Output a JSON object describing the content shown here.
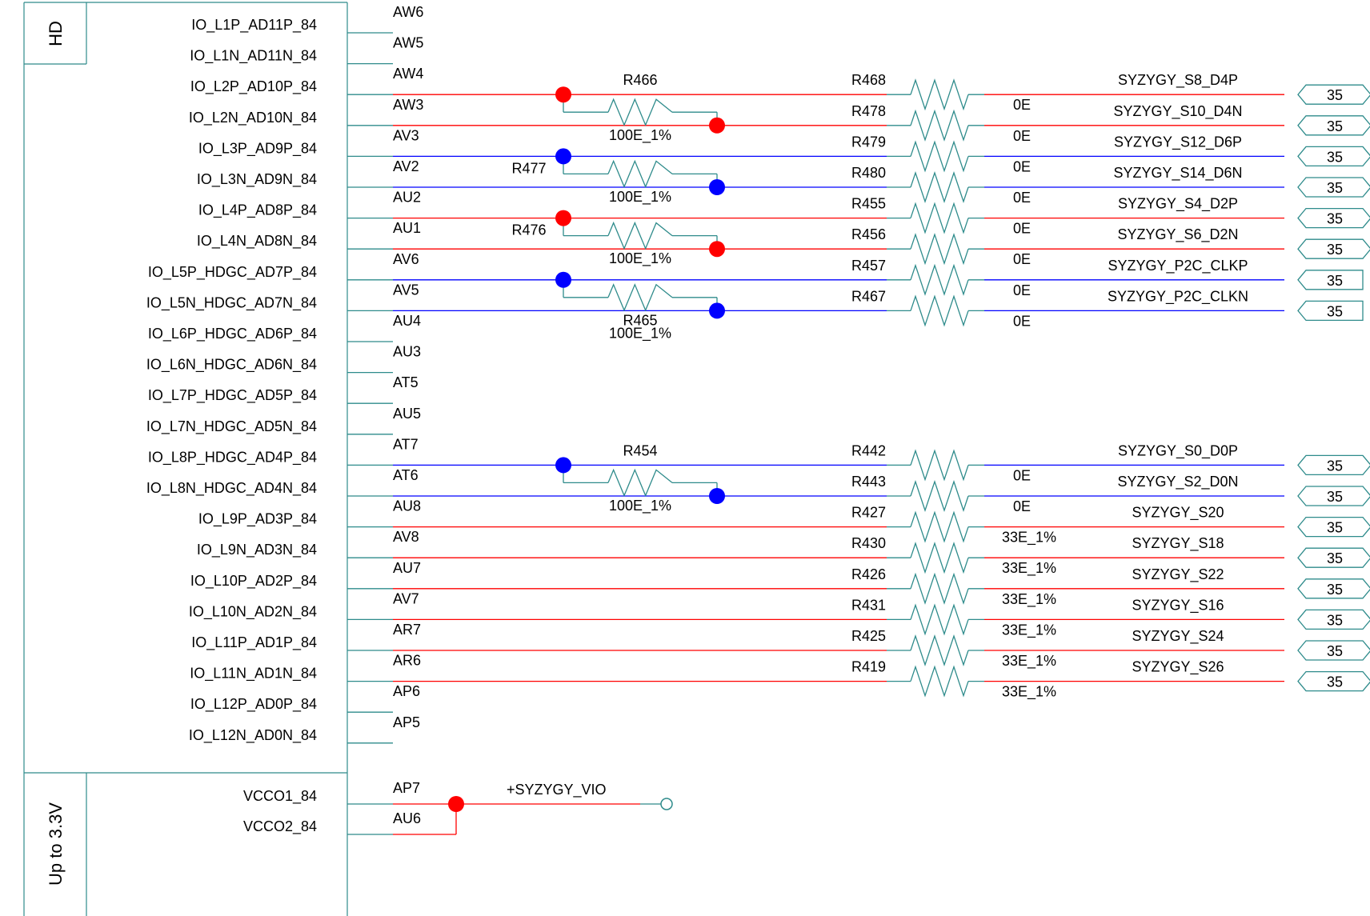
{
  "symbol": {
    "bank_label": "HD",
    "power_label": "Up to 3.3V",
    "pins": [
      {
        "name": "IO_L1P_AD11P_84",
        "pin": "AW6"
      },
      {
        "name": "IO_L1N_AD11N_84",
        "pin": "AW5"
      },
      {
        "name": "IO_L2P_AD10P_84",
        "pin": "AW4"
      },
      {
        "name": "IO_L2N_AD10N_84",
        "pin": "AW3"
      },
      {
        "name": "IO_L3P_AD9P_84",
        "pin": "AV3"
      },
      {
        "name": "IO_L3N_AD9N_84",
        "pin": "AV2"
      },
      {
        "name": "IO_L4P_AD8P_84",
        "pin": "AU2"
      },
      {
        "name": "IO_L4N_AD8N_84",
        "pin": "AU1"
      },
      {
        "name": "IO_L5P_HDGC_AD7P_84",
        "pin": "AV6"
      },
      {
        "name": "IO_L5N_HDGC_AD7N_84",
        "pin": "AV5"
      },
      {
        "name": "IO_L6P_HDGC_AD6P_84",
        "pin": "AU4"
      },
      {
        "name": "IO_L6N_HDGC_AD6N_84",
        "pin": "AU3"
      },
      {
        "name": "IO_L7P_HDGC_AD5P_84",
        "pin": "AT5"
      },
      {
        "name": "IO_L7N_HDGC_AD5N_84",
        "pin": "AU5"
      },
      {
        "name": "IO_L8P_HDGC_AD4P_84",
        "pin": "AT7"
      },
      {
        "name": "IO_L8N_HDGC_AD4N_84",
        "pin": "AT6"
      },
      {
        "name": "IO_L9P_AD3P_84",
        "pin": "AU8"
      },
      {
        "name": "IO_L9N_AD3N_84",
        "pin": "AV8"
      },
      {
        "name": "IO_L10P_AD2P_84",
        "pin": "AU7"
      },
      {
        "name": "IO_L10N_AD2N_84",
        "pin": "AV7"
      },
      {
        "name": "IO_L11P_AD1P_84",
        "pin": "AR7"
      },
      {
        "name": "IO_L11N_AD1N_84",
        "pin": "AR6"
      },
      {
        "name": "IO_L12P_AD0P_84",
        "pin": "AP6"
      },
      {
        "name": "IO_L12N_AD0N_84",
        "pin": "AP5"
      }
    ],
    "power_pins": [
      {
        "name": "VCCO1_84",
        "pin": "AP7"
      },
      {
        "name": "VCCO2_84",
        "pin": "AU6"
      }
    ]
  },
  "diff_terminations": [
    {
      "ref": "R466",
      "value": "100E_1%"
    },
    {
      "ref": "R477",
      "value": "100E_1%"
    },
    {
      "ref": "R476",
      "value": "100E_1%"
    },
    {
      "ref": "R465",
      "value": "100E_1%"
    },
    {
      "ref": "R454",
      "value": "100E_1%"
    }
  ],
  "series_resistors": [
    {
      "ref": "R468",
      "value": "0E",
      "net": "SYZYGY_S8_D4P",
      "page": "35"
    },
    {
      "ref": "R478",
      "value": "0E",
      "net": "SYZYGY_S10_D4N",
      "page": "35"
    },
    {
      "ref": "R479",
      "value": "0E",
      "net": "SYZYGY_S12_D6P",
      "page": "35"
    },
    {
      "ref": "R480",
      "value": "0E",
      "net": "SYZYGY_S14_D6N",
      "page": "35"
    },
    {
      "ref": "R455",
      "value": "0E",
      "net": "SYZYGY_S4_D2P",
      "page": "35"
    },
    {
      "ref": "R456",
      "value": "0E",
      "net": "SYZYGY_S6_D2N",
      "page": "35"
    },
    {
      "ref": "R457",
      "value": "0E",
      "net": "SYZYGY_P2C_CLKP",
      "page": "35"
    },
    {
      "ref": "R467",
      "value": "0E",
      "net": "SYZYGY_P2C_CLKN",
      "page": "35"
    },
    {
      "ref": "R442",
      "value": "0E",
      "net": "SYZYGY_S0_D0P",
      "page": "35"
    },
    {
      "ref": "R443",
      "value": "0E",
      "net": "SYZYGY_S2_D0N",
      "page": "35"
    },
    {
      "ref": "R427",
      "value": "33E_1%",
      "net": "SYZYGY_S20",
      "page": "35"
    },
    {
      "ref": "R430",
      "value": "33E_1%",
      "net": "SYZYGY_S18",
      "page": "35"
    },
    {
      "ref": "R426",
      "value": "33E_1%",
      "net": "SYZYGY_S22",
      "page": "35"
    },
    {
      "ref": "R431",
      "value": "33E_1%",
      "net": "SYZYGY_S16",
      "page": "35"
    },
    {
      "ref": "R425",
      "value": "33E_1%",
      "net": "SYZYGY_S24",
      "page": "35"
    },
    {
      "ref": "R419",
      "value": "33E_1%",
      "net": "SYZYGY_S26",
      "page": "35"
    }
  ],
  "power_net": {
    "name": "+SYZYGY_VIO"
  },
  "colors": {
    "body": "#2e8b8b",
    "red": "#ff0000",
    "blue": "#0000ff",
    "black": "#000000"
  }
}
